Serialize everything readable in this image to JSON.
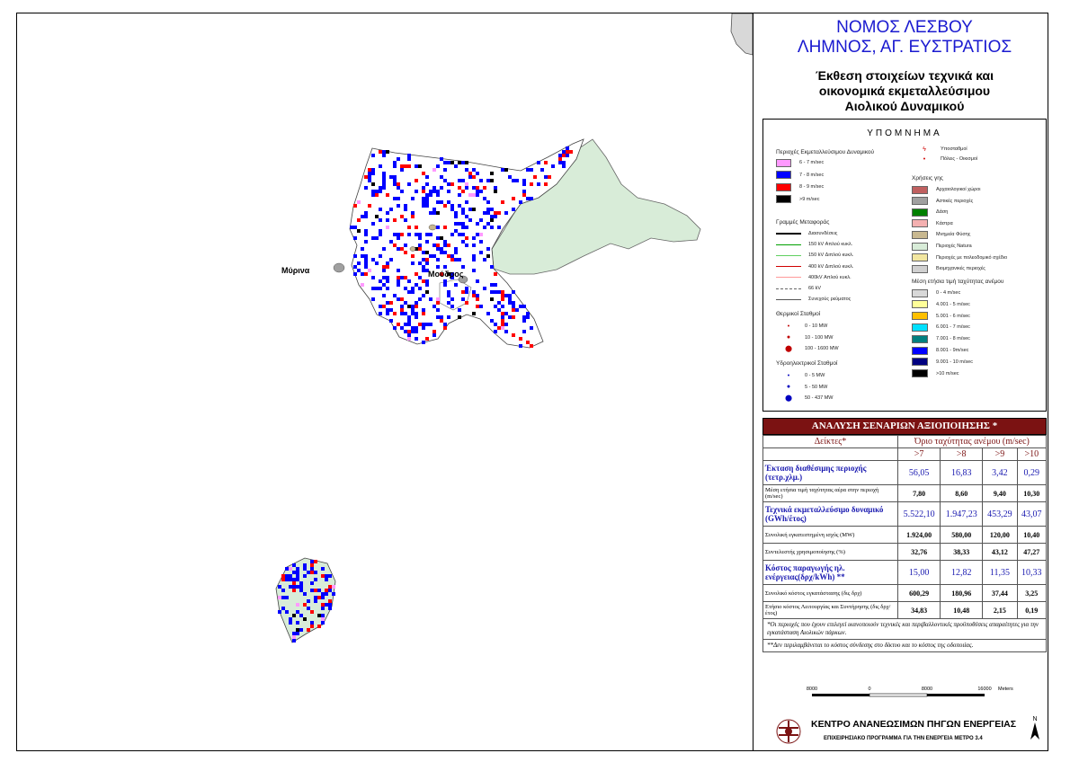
{
  "header": {
    "title_line1": "ΝΟΜΟΣ ΛΕΣΒΟΥ",
    "title_line2": "ΛΗΜΝΟΣ, ΑΓ. ΕΥΣΤΡΑΤΙΟΣ",
    "subtitle_line1": "Έκθεση στοιχείων τεχνικά και",
    "subtitle_line2": "οικονομικά εκμεταλλεύσιμου",
    "subtitle_line3": "Αιολικού Δυναμικού"
  },
  "map": {
    "place_labels": [
      "Μύρινα",
      "Μούδρος"
    ],
    "colors": {
      "land": "#ffffff",
      "natura": "#d8ecd8",
      "wind_7_8": "#0000ff",
      "wind_8_9": "#ff0000",
      "wind_9": "#000000",
      "wind_6_7": "#ff99ff"
    }
  },
  "legend": {
    "title": "ΥΠΟΜΝΗΜΑ",
    "wind_areas": {
      "heading": "Περιοχές Εκμεταλλεύσιμου Δυναμικού",
      "items": [
        {
          "label": "6 - 7 m/sec",
          "color": "#ff99ff"
        },
        {
          "label": "7 - 8 m/sec",
          "color": "#0000ff"
        },
        {
          "label": "8 - 9 m/sec",
          "color": "#ff0000"
        },
        {
          "label": ">9 m/sec",
          "color": "#000000"
        }
      ]
    },
    "transmission": {
      "heading": "Γραμμές Μεταφοράς",
      "items": [
        {
          "label": "Διασυνδέσεις",
          "color": "#000000",
          "style": "solid"
        },
        {
          "label": "150 kV Απλού κυκλ.",
          "color": "#00a000",
          "style": "solid"
        },
        {
          "label": "150 kV Διπλού κυκλ.",
          "color": "#60d060",
          "style": "solid"
        },
        {
          "label": "400 kV Διπλού κυκλ.",
          "color": "#d00000",
          "style": "solid"
        },
        {
          "label": "400kV Απλού κυκλ.",
          "color": "#ff9999",
          "style": "solid"
        },
        {
          "label": "66 kV",
          "color": "#666666",
          "style": "dashed"
        },
        {
          "label": "Συνεχούς ρεύματος",
          "color": "#555555",
          "style": "solid"
        }
      ]
    },
    "thermal": {
      "heading": "Θερμικοί Σταθμοί",
      "items": [
        {
          "label": "0 - 10 MW",
          "symbol": "•"
        },
        {
          "label": "10 - 100 MW",
          "symbol": "●"
        },
        {
          "label": "100 - 1600 MW",
          "symbol": "⬤"
        }
      ]
    },
    "hydro": {
      "heading": "Υδροηλεκτρικοί Σταθμοί",
      "items": [
        {
          "label": "0 - 5 MW",
          "symbol": "•"
        },
        {
          "label": "5 - 50 MW",
          "symbol": "●"
        },
        {
          "label": "50 - 437 MW",
          "symbol": "⬤"
        }
      ]
    },
    "points": [
      {
        "label": "Υποσταθμοί",
        "symbol": "ϟ"
      },
      {
        "label": "Πόλεις - Οικισμοί",
        "symbol": "•"
      }
    ],
    "landuse": {
      "heading": "Χρήσεις γης",
      "items": [
        {
          "label": "Αρχαιολογικοί χώροι",
          "color": "#c06060"
        },
        {
          "label": "Αστικές περιοχές",
          "color": "#a0a0a0"
        },
        {
          "label": "Δάση",
          "color": "#008000"
        },
        {
          "label": "Κάστρα",
          "color": "#f4b0b0"
        },
        {
          "label": "Μνημεία Φύσης",
          "color": "#c8b890"
        },
        {
          "label": "Περιοχές Natura",
          "color": "#d8ecd8"
        },
        {
          "label": "Περιοχές με πολεοδομικό σχέδιο",
          "color": "#f2e6a0"
        },
        {
          "label": "Βιομηχανικές περιοχές",
          "color": "#d0d0d0"
        }
      ]
    },
    "mean_wind": {
      "heading": "Μέση ετήσια τιμή ταχύτητας ανέμου",
      "items": [
        {
          "label": "0 - 4 m/sec",
          "color": "#d8d8d8"
        },
        {
          "label": "4.001 - 5 m/sec",
          "color": "#ffff99"
        },
        {
          "label": "5.001 - 6 m/sec",
          "color": "#ffc000"
        },
        {
          "label": "6.001 - 7 m/sec",
          "color": "#00e0ff"
        },
        {
          "label": "7.001 - 8 m/sec",
          "color": "#008080"
        },
        {
          "label": "8.001 - 9m/sec",
          "color": "#0000ff"
        },
        {
          "label": "9.001 - 10 m/sec",
          "color": "#000080"
        },
        {
          "label": ">10 m/sec",
          "color": "#000000"
        }
      ]
    }
  },
  "analysis": {
    "title": "ΑΝΑΛΥΣΗ ΣΕΝΑΡΙΩΝ ΑΞΙΟΠΟΙΗΣΗΣ *",
    "col_indicators": "Δείκτες*",
    "col_threshold": "Όριο ταχύτητας ανέμου (m/sec)",
    "thresholds": [
      ">7",
      ">8",
      ">9",
      ">10"
    ],
    "rows": [
      {
        "label": "Έκταση διαθέσιμης περιοχής (τετρ.χλμ.)",
        "values": [
          "56,05",
          "16,83",
          "3,42",
          "0,29"
        ],
        "highlight": true
      },
      {
        "label": "Μέση ετήσια τιμή ταχύτητας αέρα στην περιοχή (m/sec)",
        "values": [
          "7,80",
          "8,60",
          "9,40",
          "10,30"
        ],
        "highlight": false
      },
      {
        "label": "Τεχνικά εκμεταλλεύσιμο δυναμικό (GWh/έτος)",
        "values": [
          "5.522,10",
          "1.947,23",
          "453,29",
          "43,07"
        ],
        "highlight": true
      },
      {
        "label": "Συνολική εγκατεστημένη ισχύς (MW)",
        "values": [
          "1.924,00",
          "580,00",
          "120,00",
          "10,40"
        ],
        "highlight": false
      },
      {
        "label": "Συντελεστής χρησιμοποίησης (%)",
        "values": [
          "32,76",
          "38,33",
          "43,12",
          "47,27"
        ],
        "highlight": false
      },
      {
        "label": "Κόστος παραγωγής ηλ. ενέργειας(δρχ/kWh) **",
        "values": [
          "15,00",
          "12,82",
          "11,35",
          "10,33"
        ],
        "highlight": true
      },
      {
        "label": "Συνολικό κόστος εγκατάστασης (δις δρχ)",
        "values": [
          "600,29",
          "180,96",
          "37,44",
          "3,25"
        ],
        "highlight": false
      },
      {
        "label": "Ετήσιο κόστος Λειτουργίας και Συντήρησης (δις δρχ/έτος)",
        "values": [
          "34,83",
          "10,48",
          "2,15",
          "0,19"
        ],
        "highlight": false
      }
    ],
    "note1": "*Οι περιοχές που έχουν επιλεγεί ικανοποιούν τεχνικές και περιβαλλοντικές προϋποθέσεις απαραίτητες για την εγκατάσταση Αιολικών πάρκων.",
    "note2": "**Δεν περιλαμβάνεται το κόστος σύνδεσης στο δίκτυο και το κόστος της οδοποιίας."
  },
  "scalebar": {
    "labels": [
      "8000",
      "0",
      "8000",
      "16000"
    ],
    "unit": "Meters"
  },
  "footer": {
    "org": "ΚΕΝΤΡΟ ΑΝΑΝΕΩΣΙΜΩΝ ΠΗΓΩΝ ΕΝΕΡΓΕΙΑΣ",
    "program": "ΕΠΙΧΕΙΡΗΣΙΑΚΟ ΠΡΟΓΡΑΜΜΑ ΓΙΑ ΤΗΝ ΕΝΕΡΓΕΙΑ ΜΕΤΡΟ 3.4",
    "north": "N"
  }
}
